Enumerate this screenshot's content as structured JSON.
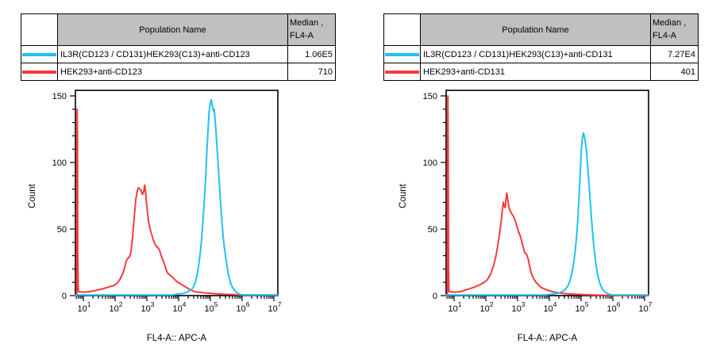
{
  "colors": {
    "cyan_series": "#1ec2f0",
    "red_series": "#f63b3b",
    "table_header_bg": "#c0c0c0",
    "axis": "#000000"
  },
  "panels": [
    {
      "table": {
        "header": {
          "population": "Population Name",
          "median_line1": "Median ,",
          "median_line2": "FL4-A"
        },
        "rows": [
          {
            "color_hex": "#1ec2f0",
            "name": "IL3R(CD123 / CD131)HEK293(C13)+anti-CD123",
            "median": "1.06E5"
          },
          {
            "color_hex": "#f63b3b",
            "name": "HEK293+anti-CD123",
            "median": "710"
          }
        ]
      }
    },
    {
      "table": {
        "header": {
          "population": "Population Name",
          "median_line1": "Median ,",
          "median_line2": "FL4-A"
        },
        "rows": [
          {
            "color_hex": "#1ec2f0",
            "name": "IL3R(CD123 / CD131)HEK293(C13)+anti-CD131",
            "median": "7.27E4"
          },
          {
            "color_hex": "#f63b3b",
            "name": "HEK293+anti-CD131",
            "median": "401"
          }
        ]
      }
    }
  ],
  "chart_data": [
    {
      "type": "line",
      "subtype": "flow-cytometry-histogram",
      "title": "",
      "xlabel": "FL4-A:: APC-A",
      "ylabel": "Count",
      "x_scale": "log10",
      "xlim_log10": [
        0.75,
        7.125
      ],
      "x_major_ticks_exponents": [
        1,
        2,
        3,
        4,
        5,
        6,
        7
      ],
      "ylim": [
        0,
        154
      ],
      "y_major_ticks": [
        0,
        50,
        100,
        150
      ],
      "y_minor_tick_step": 10,
      "grid": false,
      "legend_position": "none",
      "series": [
        {
          "name": "HEK293+anti-CD123",
          "color": "#f63b3b",
          "points_log10x_count": [
            [
              0.75,
              0
            ],
            [
              0.79,
              0
            ],
            [
              0.795,
              90
            ],
            [
              0.805,
              140
            ],
            [
              0.815,
              120
            ],
            [
              0.825,
              30
            ],
            [
              0.84,
              3
            ],
            [
              1.0,
              2.5
            ],
            [
              1.2,
              3
            ],
            [
              1.4,
              4
            ],
            [
              1.6,
              5
            ],
            [
              1.8,
              6.5
            ],
            [
              1.95,
              7.5
            ],
            [
              2.05,
              9
            ],
            [
              2.15,
              12
            ],
            [
              2.25,
              17
            ],
            [
              2.3,
              21
            ],
            [
              2.35,
              26
            ],
            [
              2.4,
              28
            ],
            [
              2.45,
              29
            ],
            [
              2.5,
              33
            ],
            [
              2.55,
              44
            ],
            [
              2.6,
              58
            ],
            [
              2.65,
              72
            ],
            [
              2.7,
              79
            ],
            [
              2.74,
              81
            ],
            [
              2.78,
              80
            ],
            [
              2.82,
              79
            ],
            [
              2.86,
              76
            ],
            [
              2.9,
              78
            ],
            [
              2.93,
              83
            ],
            [
              2.95,
              80
            ],
            [
              3.0,
              67
            ],
            [
              3.05,
              56
            ],
            [
              3.1,
              50
            ],
            [
              3.15,
              46
            ],
            [
              3.2,
              42
            ],
            [
              3.25,
              39
            ],
            [
              3.3,
              37
            ],
            [
              3.35,
              36
            ],
            [
              3.4,
              34
            ],
            [
              3.45,
              30
            ],
            [
              3.5,
              27
            ],
            [
              3.55,
              24
            ],
            [
              3.6,
              20
            ],
            [
              3.65,
              17
            ],
            [
              3.72,
              15.5
            ],
            [
              3.8,
              14
            ],
            [
              3.88,
              12
            ],
            [
              3.95,
              10.5
            ],
            [
              4.05,
              9
            ],
            [
              4.15,
              7.5
            ],
            [
              4.25,
              6
            ],
            [
              4.35,
              4.5
            ],
            [
              4.5,
              3
            ],
            [
              4.65,
              2.5
            ],
            [
              4.85,
              2
            ],
            [
              5.1,
              1.5
            ],
            [
              5.4,
              1
            ],
            [
              5.7,
              0.7
            ],
            [
              6.0,
              0.5
            ],
            [
              7.12,
              0.4
            ]
          ]
        },
        {
          "name": "IL3R(CD123 / CD131)HEK293(C13)+anti-CD123",
          "color": "#1ec2f0",
          "points_log10x_count": [
            [
              0.75,
              0.5
            ],
            [
              3.8,
              0.5
            ],
            [
              3.95,
              1
            ],
            [
              4.1,
              1.5
            ],
            [
              4.2,
              2
            ],
            [
              4.3,
              3
            ],
            [
              4.4,
              4.5
            ],
            [
              4.48,
              7
            ],
            [
              4.54,
              11
            ],
            [
              4.6,
              18
            ],
            [
              4.65,
              26
            ],
            [
              4.7,
              36
            ],
            [
              4.75,
              50
            ],
            [
              4.8,
              68
            ],
            [
              4.85,
              88
            ],
            [
              4.89,
              108
            ],
            [
              4.93,
              126
            ],
            [
              4.96,
              138
            ],
            [
              5.0,
              145
            ],
            [
              5.03,
              147
            ],
            [
              5.06,
              143
            ],
            [
              5.09,
              139
            ],
            [
              5.12,
              140
            ],
            [
              5.16,
              129
            ],
            [
              5.2,
              115
            ],
            [
              5.24,
              100
            ],
            [
              5.28,
              85
            ],
            [
              5.32,
              70
            ],
            [
              5.36,
              57
            ],
            [
              5.4,
              45
            ],
            [
              5.44,
              36
            ],
            [
              5.48,
              29
            ],
            [
              5.52,
              23
            ],
            [
              5.56,
              17
            ],
            [
              5.6,
              12.5
            ],
            [
              5.65,
              8.5
            ],
            [
              5.7,
              6
            ],
            [
              5.76,
              4
            ],
            [
              5.82,
              2.5
            ],
            [
              5.9,
              1.2
            ],
            [
              6.0,
              0.6
            ],
            [
              6.15,
              0.4
            ],
            [
              7.12,
              0.4
            ]
          ]
        }
      ]
    },
    {
      "type": "line",
      "subtype": "flow-cytometry-histogram",
      "title": "",
      "xlabel": "FL4-A:: APC-A",
      "ylabel": "Count",
      "x_scale": "log10",
      "xlim_log10": [
        0.75,
        7.125
      ],
      "x_major_ticks_exponents": [
        1,
        2,
        3,
        4,
        5,
        6,
        7
      ],
      "ylim": [
        0,
        154
      ],
      "y_major_ticks": [
        0,
        50,
        100,
        150
      ],
      "y_minor_tick_step": 10,
      "grid": false,
      "legend_position": "none",
      "series": [
        {
          "name": "HEK293+anti-CD131",
          "color": "#f63b3b",
          "points_log10x_count": [
            [
              0.75,
              0
            ],
            [
              0.79,
              0
            ],
            [
              0.795,
              100
            ],
            [
              0.805,
              150
            ],
            [
              0.815,
              110
            ],
            [
              0.825,
              25
            ],
            [
              0.84,
              3
            ],
            [
              1.0,
              2.5
            ],
            [
              1.2,
              3
            ],
            [
              1.4,
              4.5
            ],
            [
              1.6,
              6
            ],
            [
              1.8,
              8
            ],
            [
              1.95,
              10
            ],
            [
              2.05,
              12
            ],
            [
              2.15,
              16
            ],
            [
              2.25,
              23
            ],
            [
              2.32,
              30
            ],
            [
              2.38,
              38
            ],
            [
              2.44,
              48
            ],
            [
              2.48,
              55
            ],
            [
              2.52,
              64
            ],
            [
              2.55,
              70
            ],
            [
              2.58,
              67
            ],
            [
              2.61,
              66
            ],
            [
              2.64,
              73
            ],
            [
              2.66,
              77
            ],
            [
              2.69,
              72
            ],
            [
              2.73,
              66
            ],
            [
              2.78,
              63
            ],
            [
              2.83,
              61
            ],
            [
              2.88,
              59
            ],
            [
              2.93,
              56
            ],
            [
              2.98,
              52
            ],
            [
              3.03,
              48
            ],
            [
              3.08,
              45
            ],
            [
              3.13,
              41
            ],
            [
              3.18,
              36
            ],
            [
              3.23,
              32
            ],
            [
              3.28,
              31
            ],
            [
              3.33,
              28
            ],
            [
              3.38,
              22
            ],
            [
              3.43,
              17
            ],
            [
              3.5,
              13
            ],
            [
              3.58,
              10
            ],
            [
              3.66,
              8
            ],
            [
              3.75,
              6
            ],
            [
              3.85,
              5
            ],
            [
              3.95,
              4
            ],
            [
              4.1,
              3
            ],
            [
              4.3,
              2
            ],
            [
              4.5,
              1.5
            ],
            [
              4.8,
              1
            ],
            [
              5.2,
              0.6
            ],
            [
              5.6,
              0.3
            ],
            [
              6.0,
              0.2
            ],
            [
              7.12,
              0.2
            ]
          ]
        },
        {
          "name": "IL3R(CD123 / CD131)HEK293(C13)+anti-CD131",
          "color": "#1ec2f0",
          "points_log10x_count": [
            [
              0.75,
              0.5
            ],
            [
              3.9,
              0.5
            ],
            [
              4.05,
              1
            ],
            [
              4.2,
              1.5
            ],
            [
              4.3,
              2
            ],
            [
              4.4,
              3
            ],
            [
              4.5,
              4.5
            ],
            [
              4.58,
              7
            ],
            [
              4.65,
              11
            ],
            [
              4.7,
              16
            ],
            [
              4.75,
              22
            ],
            [
              4.8,
              30
            ],
            [
              4.85,
              42
            ],
            [
              4.9,
              58
            ],
            [
              4.94,
              76
            ],
            [
              4.98,
              95
            ],
            [
              5.01,
              110
            ],
            [
              5.04,
              118
            ],
            [
              5.07,
              122
            ],
            [
              5.1,
              120
            ],
            [
              5.13,
              116
            ],
            [
              5.17,
              108
            ],
            [
              5.21,
              97
            ],
            [
              5.25,
              84
            ],
            [
              5.29,
              70
            ],
            [
              5.33,
              57
            ],
            [
              5.37,
              45
            ],
            [
              5.41,
              35
            ],
            [
              5.45,
              27
            ],
            [
              5.49,
              20
            ],
            [
              5.53,
              15
            ],
            [
              5.58,
              10
            ],
            [
              5.63,
              7
            ],
            [
              5.68,
              4.5
            ],
            [
              5.74,
              3
            ],
            [
              5.8,
              2
            ],
            [
              5.88,
              1
            ],
            [
              5.96,
              0.6
            ],
            [
              6.1,
              0.4
            ],
            [
              7.12,
              0.4
            ]
          ]
        }
      ]
    }
  ]
}
